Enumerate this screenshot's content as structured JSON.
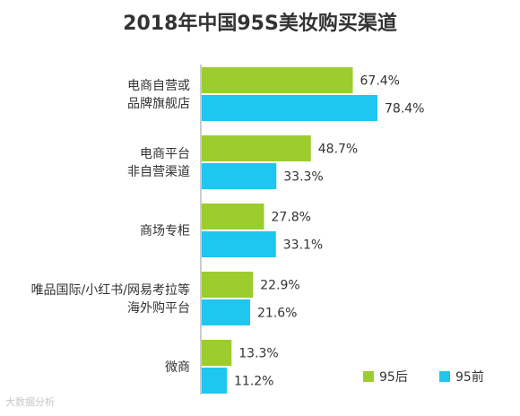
{
  "chart_data": {
    "type": "bar",
    "orientation": "horizontal",
    "title": "2018年中国95S美妆购买渠道",
    "categories": [
      [
        "电商自营或",
        "品牌旗舰店"
      ],
      [
        "电商平台",
        "非自营渠道"
      ],
      [
        "商场专柜"
      ],
      [
        "唯品国际/小红书/网易考拉等",
        "海外购平台"
      ],
      [
        "微商"
      ]
    ],
    "series": [
      {
        "name": "95后",
        "color": "#9ccc2e",
        "values": [
          67.4,
          48.7,
          27.8,
          22.9,
          13.3
        ]
      },
      {
        "name": "95前",
        "color": "#1ec6f0",
        "values": [
          78.4,
          33.3,
          33.1,
          21.6,
          11.2
        ]
      }
    ],
    "value_suffix": "%",
    "xlim": [
      0,
      100
    ],
    "legend_position": "bottom-right",
    "grid": false
  },
  "watermark": "大数据分析"
}
